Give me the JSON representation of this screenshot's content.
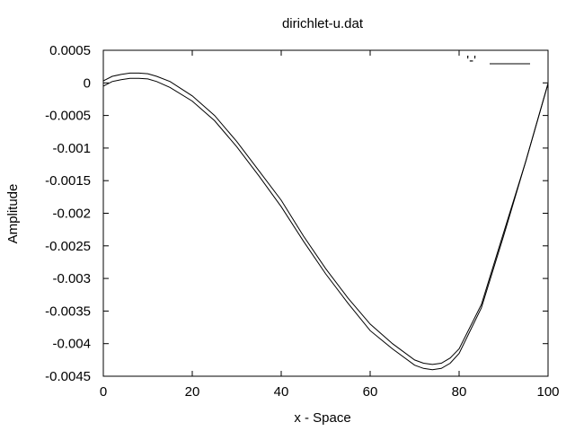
{
  "chart_data": {
    "type": "line",
    "title": "dirichlet-u.dat",
    "xlabel": "x - Space",
    "ylabel": "Amplitude",
    "xlim": [
      0,
      100
    ],
    "ylim": [
      -0.0045,
      0.0005
    ],
    "x_ticks": [
      "0",
      "20",
      "40",
      "60",
      "80",
      "100"
    ],
    "x_tick_values": [
      0,
      20,
      40,
      60,
      80,
      100
    ],
    "y_ticks": [
      "0.0005",
      "0",
      "-0.0005",
      "-0.001",
      "-0.0015",
      "-0.002",
      "-0.0025",
      "-0.003",
      "-0.0035",
      "-0.004",
      "-0.0045"
    ],
    "y_tick_values": [
      0.0005,
      0,
      -0.0005,
      -0.001,
      -0.0015,
      -0.002,
      -0.0025,
      -0.003,
      -0.0035,
      -0.004,
      -0.0045
    ],
    "grid": false,
    "legend": {
      "placement": "top-right",
      "entries": [
        "'-'"
      ]
    },
    "series": [
      {
        "x": [
          0,
          2,
          4,
          6,
          8,
          10,
          12,
          15,
          20,
          25,
          30,
          35,
          40,
          45,
          50,
          55,
          60,
          65,
          70,
          72,
          74,
          76,
          78,
          80,
          85,
          90,
          95,
          100
        ],
        "y": [
          3e-05,
          0.0001,
          0.00013,
          0.00015,
          0.00015,
          0.00014,
          0.0001,
          2e-05,
          -0.0002,
          -0.0005,
          -0.0009,
          -0.00135,
          -0.0018,
          -0.00235,
          -0.00285,
          -0.0033,
          -0.0037,
          -0.004,
          -0.00425,
          -0.0043,
          -0.00432,
          -0.0043,
          -0.00422,
          -0.00408,
          -0.0034,
          -0.0023,
          -0.0012,
          -1e-05
        ]
      },
      {
        "x": [
          0,
          2,
          4,
          6,
          8,
          10,
          12,
          15,
          20,
          25,
          30,
          35,
          40,
          45,
          50,
          55,
          60,
          65,
          70,
          72,
          74,
          76,
          78,
          80,
          85,
          90,
          95,
          100
        ],
        "y": [
          -5e-05,
          2e-05,
          5e-05,
          7e-05,
          7e-05,
          6e-05,
          2e-05,
          -7e-05,
          -0.00028,
          -0.00058,
          -0.00098,
          -0.00143,
          -0.0019,
          -0.00243,
          -0.00293,
          -0.00338,
          -0.0038,
          -0.00408,
          -0.00433,
          -0.00438,
          -0.0044,
          -0.00438,
          -0.0043,
          -0.00415,
          -0.00345,
          -0.00235,
          -0.0012,
          -1e-05
        ]
      }
    ]
  }
}
